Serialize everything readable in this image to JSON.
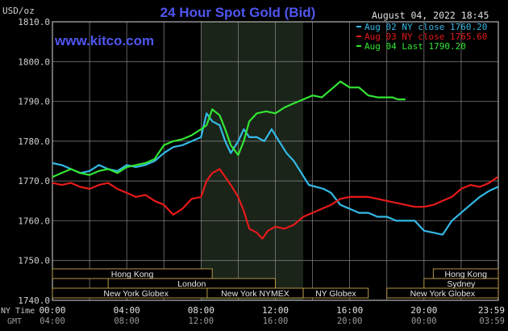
{
  "header": {
    "title": "24 Hour Spot Gold (Bid)",
    "currency": "USD/oz",
    "date_time": "August 04, 2022 18:45",
    "watermark": "www.kitco.com"
  },
  "legend": [
    {
      "label": "Aug 02 NY close 1760.20",
      "color": "#33b9e6"
    },
    {
      "label": "Aug 03 NY close 1765.60",
      "color": "#e61a1a"
    },
    {
      "label": "Aug 04 Last 1790.20",
      "color": "#33e633"
    }
  ],
  "bottom_labels": {
    "ny_time": "NY Time",
    "gmt": "GMT"
  },
  "sessions": [
    {
      "label": "Hong Kong",
      "start": 0,
      "end": 8.6
    },
    {
      "label": "London",
      "start": 3,
      "end": 12
    },
    {
      "label": "New York Globex",
      "start": 0,
      "end": 9
    },
    {
      "label": "New York NYMEX",
      "start": 8.33,
      "end": 13.5
    },
    {
      "label": "NY Globex",
      "start": 13.5,
      "end": 17
    },
    {
      "label": "Hong Kong",
      "start": 20.5,
      "end": 24
    },
    {
      "label": "Sydney",
      "start": 20,
      "end": 24
    },
    {
      "label": "New York Globex",
      "start": 18,
      "end": 24
    }
  ],
  "chart_data": {
    "type": "line",
    "title": "24 Hour Spot Gold (Bid)",
    "ylabel": "USD/oz",
    "ylim": [
      1740,
      1810
    ],
    "y_ticks": [
      "1740.0",
      "1750.0",
      "1760.0",
      "1770.0",
      "1780.0",
      "1790.0",
      "1800.0",
      "1810.0"
    ],
    "x_ticks_ny": [
      "00:00",
      "04:00",
      "08:00",
      "12:00",
      "16:00",
      "20:00",
      "23:59"
    ],
    "x_ticks_gmt": [
      "04:00",
      "08:00",
      "12:00",
      "16:00",
      "20:00",
      "00:00",
      "03:59"
    ],
    "highlight_band": [
      8,
      13.5
    ],
    "series": [
      {
        "name": "Aug 02 NY close 1760.20",
        "color": "#33b9e6",
        "x": [
          0,
          0.5,
          1,
          1.5,
          2,
          2.5,
          3,
          3.5,
          4,
          4.5,
          5,
          5.5,
          6,
          6.5,
          7,
          7.5,
          8,
          8.3,
          8.6,
          9,
          9.3,
          9.6,
          10,
          10.3,
          10.6,
          11,
          11.4,
          11.8,
          12.2,
          12.6,
          13,
          13.4,
          13.8,
          14.2,
          14.6,
          15,
          15.5,
          16,
          16.5,
          17,
          17.5,
          18,
          18.5,
          19,
          19.5,
          20,
          20.5,
          21,
          21.5,
          22,
          22.5,
          23,
          23.5,
          23.98
        ],
        "y": [
          1774.5,
          1774,
          1773,
          1772,
          1772.5,
          1774,
          1773,
          1772.5,
          1774,
          1773.5,
          1774,
          1775,
          1777,
          1778.5,
          1779,
          1780,
          1781,
          1787,
          1785,
          1784,
          1780,
          1777,
          1780,
          1783,
          1781,
          1781,
          1780,
          1783,
          1780,
          1777,
          1775,
          1772,
          1769,
          1768.5,
          1768,
          1767,
          1764,
          1763,
          1762,
          1762,
          1761,
          1761,
          1760,
          1760,
          1760,
          1757.5,
          1757,
          1756.5,
          1760,
          1762,
          1764,
          1766,
          1767.5,
          1768.5
        ]
      },
      {
        "name": "Aug 03 NY close 1765.60",
        "color": "#e61a1a",
        "x": [
          0,
          0.5,
          1,
          1.5,
          2,
          2.5,
          3,
          3.5,
          4,
          4.5,
          5,
          5.5,
          6,
          6.5,
          7,
          7.5,
          8,
          8.3,
          8.6,
          9,
          9.3,
          9.6,
          10,
          10.3,
          10.6,
          11,
          11.3,
          11.6,
          12,
          12.5,
          13,
          13.5,
          14,
          14.5,
          15,
          15.5,
          16,
          16.5,
          17,
          17.5,
          18,
          18.5,
          19,
          19.5,
          20,
          20.5,
          21,
          21.5,
          22,
          22.5,
          23,
          23.5,
          23.98
        ],
        "y": [
          1769.5,
          1769,
          1769.5,
          1768.5,
          1768,
          1769,
          1769.5,
          1768,
          1767,
          1766,
          1766.5,
          1765,
          1764,
          1761.5,
          1763,
          1765.5,
          1766,
          1770,
          1772,
          1773,
          1771,
          1769,
          1766,
          1762.5,
          1758,
          1757,
          1755.5,
          1757.5,
          1758.5,
          1758,
          1759,
          1761,
          1762,
          1763,
          1764,
          1765.5,
          1766,
          1766,
          1766,
          1765.5,
          1765,
          1764.5,
          1764,
          1763.5,
          1763.5,
          1764,
          1765,
          1766,
          1768,
          1769,
          1768.5,
          1769.5,
          1771
        ]
      },
      {
        "name": "Aug 04 Last 1790.20",
        "color": "#33e633",
        "x": [
          0,
          0.5,
          1,
          1.5,
          2,
          2.5,
          3,
          3.5,
          4,
          4.5,
          5,
          5.5,
          6,
          6.5,
          7,
          7.5,
          8,
          8.3,
          8.6,
          9,
          9.3,
          9.6,
          10,
          10.3,
          10.6,
          11,
          11.5,
          12,
          12.5,
          13,
          13.5,
          14,
          14.5,
          15,
          15.5,
          16,
          16.5,
          17,
          17.5,
          18,
          18.3,
          18.6,
          19
        ],
        "y": [
          1771,
          1772,
          1773,
          1772,
          1771.5,
          1772.5,
          1773,
          1772,
          1773.5,
          1774,
          1774.5,
          1775.5,
          1779,
          1780,
          1780.5,
          1781.5,
          1783,
          1784,
          1788,
          1786.5,
          1783,
          1779,
          1776.5,
          1780,
          1785,
          1787,
          1787.5,
          1787,
          1788.5,
          1789.5,
          1790.5,
          1791.5,
          1791,
          1793,
          1795,
          1793.5,
          1793.5,
          1791.5,
          1791,
          1791,
          1791,
          1790.5,
          1790.5
        ]
      }
    ]
  }
}
